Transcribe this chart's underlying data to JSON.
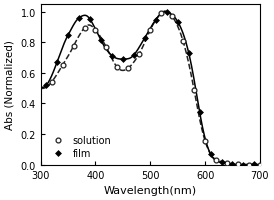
{
  "title": "",
  "xlabel": "Wavelength(nm)",
  "ylabel": "Abs (Normalized)",
  "xlim": [
    300,
    700
  ],
  "ylim": [
    0.0,
    1.05
  ],
  "yticks": [
    0.0,
    0.2,
    0.4,
    0.6,
    0.8,
    1.0
  ],
  "xticks": [
    300,
    400,
    500,
    600,
    700
  ],
  "solution_x": [
    300,
    320,
    340,
    355,
    365,
    375,
    385,
    395,
    410,
    425,
    435,
    445,
    455,
    470,
    485,
    500,
    515,
    525,
    535,
    545,
    555,
    565,
    575,
    585,
    595,
    610,
    630,
    650,
    670,
    690,
    700
  ],
  "solution_y": [
    0.5,
    0.54,
    0.65,
    0.74,
    0.81,
    0.87,
    0.91,
    0.9,
    0.83,
    0.73,
    0.66,
    0.62,
    0.62,
    0.67,
    0.76,
    0.88,
    0.97,
    1.0,
    0.99,
    0.94,
    0.86,
    0.74,
    0.58,
    0.39,
    0.22,
    0.07,
    0.02,
    0.005,
    0.001,
    0.0,
    0.0
  ],
  "film_x": [
    300,
    320,
    335,
    345,
    355,
    365,
    375,
    385,
    395,
    405,
    415,
    425,
    435,
    445,
    455,
    465,
    475,
    490,
    505,
    515,
    525,
    535,
    545,
    555,
    565,
    575,
    585,
    595,
    610,
    630,
    650,
    670,
    700
  ],
  "film_y": [
    0.51,
    0.58,
    0.72,
    0.81,
    0.88,
    0.94,
    0.97,
    0.97,
    0.92,
    0.85,
    0.78,
    0.73,
    0.7,
    0.69,
    0.69,
    0.7,
    0.74,
    0.83,
    0.92,
    0.97,
    1.0,
    0.99,
    0.96,
    0.9,
    0.8,
    0.65,
    0.45,
    0.25,
    0.07,
    0.015,
    0.003,
    0.001,
    0.0
  ],
  "solution_color": "#222222",
  "film_color": "#000000",
  "legend_solution": "solution",
  "legend_film": "film",
  "sol_marker_size": 3.5,
  "film_marker_size": 3.5,
  "linewidth": 1.1
}
